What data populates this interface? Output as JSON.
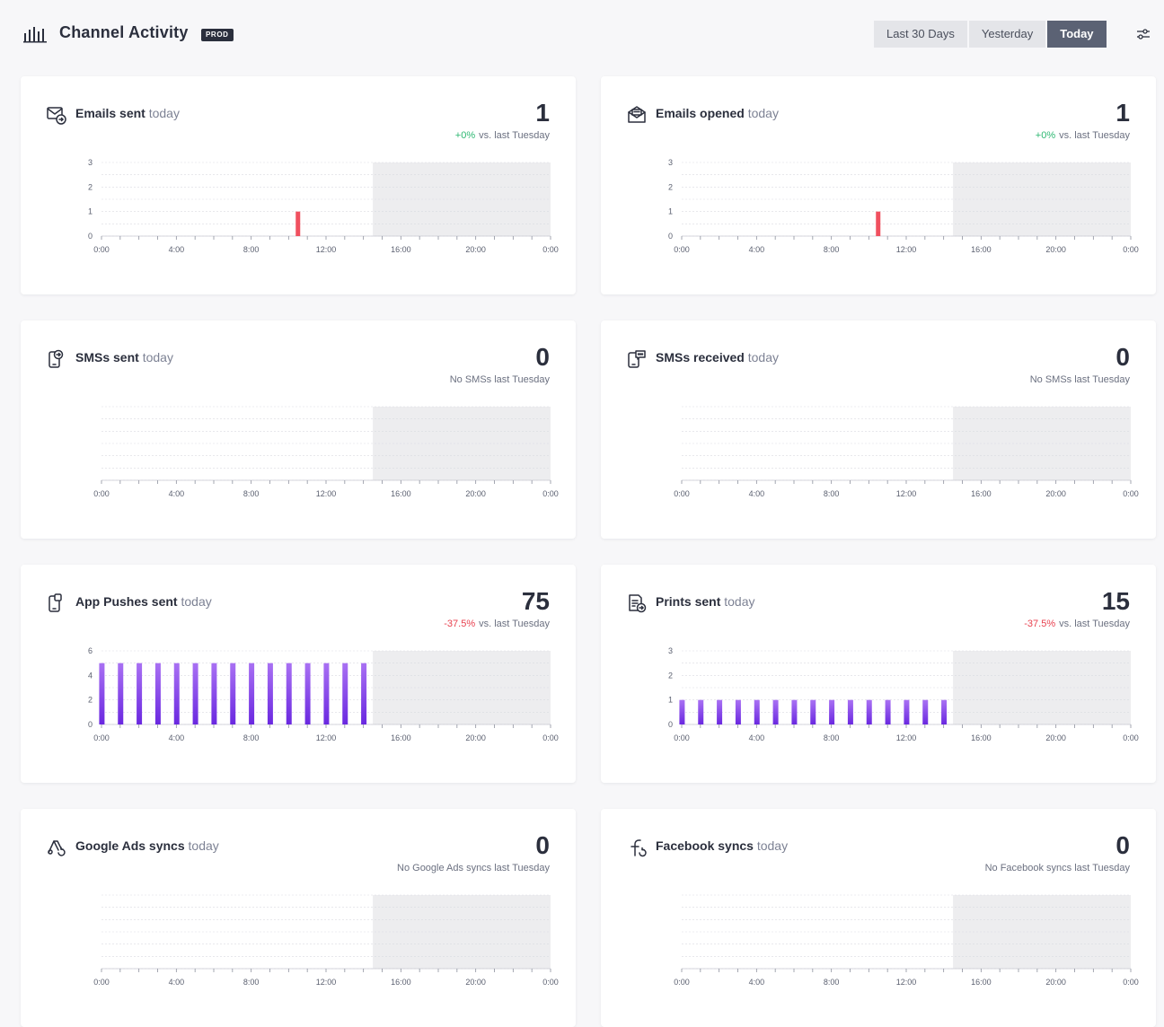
{
  "header": {
    "title": "Channel Activity",
    "env_badge": "PROD",
    "ranges": [
      "Last 30 Days",
      "Yesterday",
      "Today"
    ],
    "active_range": "Today"
  },
  "x_ticks": [
    "0:00",
    "4:00",
    "8:00",
    "12:00",
    "16:00",
    "20:00",
    "0:00"
  ],
  "cards": [
    {
      "title": "Emails sent",
      "suffix": "today",
      "value": "1",
      "delta": "+0%",
      "delta_sign": "positive",
      "compare": "vs. last Tuesday",
      "icon": "email-send-icon"
    },
    {
      "title": "Emails opened",
      "suffix": "today",
      "value": "1",
      "delta": "+0%",
      "delta_sign": "positive",
      "compare": "vs. last Tuesday",
      "icon": "email-open-icon"
    },
    {
      "title": "SMSs sent",
      "suffix": "today",
      "value": "0",
      "delta": "",
      "delta_sign": "none",
      "compare": "No SMSs last Tuesday",
      "icon": "sms-send-icon"
    },
    {
      "title": "SMSs received",
      "suffix": "today",
      "value": "0",
      "delta": "",
      "delta_sign": "none",
      "compare": "No SMSs last Tuesday",
      "icon": "sms-receive-icon"
    },
    {
      "title": "App Pushes sent",
      "suffix": "today",
      "value": "75",
      "delta": "-37.5%",
      "delta_sign": "negative",
      "compare": "vs. last Tuesday",
      "icon": "app-push-icon"
    },
    {
      "title": "Prints sent",
      "suffix": "today",
      "value": "15",
      "delta": "-37.5%",
      "delta_sign": "negative",
      "compare": "vs. last Tuesday",
      "icon": "print-send-icon"
    },
    {
      "title": "Google Ads syncs",
      "suffix": "today",
      "value": "0",
      "delta": "",
      "delta_sign": "none",
      "compare": "No Google Ads syncs last Tuesday",
      "icon": "google-ads-icon"
    },
    {
      "title": "Facebook syncs",
      "suffix": "today",
      "value": "0",
      "delta": "",
      "delta_sign": "none",
      "compare": "No Facebook syncs last Tuesday",
      "icon": "facebook-sync-icon"
    }
  ],
  "colors": {
    "email_bar": "#f0505f",
    "push_bar_top": "#a971f3",
    "push_bar_bottom": "#6a28e0",
    "future_shade": "#ededef",
    "active_range_bg": "#5b6274"
  },
  "chart_data": [
    {
      "type": "bar",
      "series_label": "Emails sent",
      "x_hours": [
        10
      ],
      "values": [
        1
      ],
      "yticks": [
        "0",
        "1",
        "2",
        "3"
      ],
      "ymax": 3,
      "xlabels": [
        "0:00",
        "4:00",
        "8:00",
        "12:00",
        "16:00",
        "20:00",
        "0:00"
      ],
      "current_hour": 14.5,
      "bar_color": "red"
    },
    {
      "type": "bar",
      "series_label": "Emails opened",
      "x_hours": [
        10
      ],
      "values": [
        1
      ],
      "yticks": [
        "0",
        "1",
        "2",
        "3"
      ],
      "ymax": 3,
      "xlabels": [
        "0:00",
        "4:00",
        "8:00",
        "12:00",
        "16:00",
        "20:00",
        "0:00"
      ],
      "current_hour": 14.5,
      "bar_color": "red"
    },
    {
      "type": "bar",
      "series_label": "SMSs sent",
      "x_hours": [],
      "values": [],
      "yticks": [],
      "ymax": 3,
      "xlabels": [
        "0:00",
        "4:00",
        "8:00",
        "12:00",
        "16:00",
        "20:00",
        "0:00"
      ],
      "current_hour": 14.5,
      "bar_color": "red"
    },
    {
      "type": "bar",
      "series_label": "SMSs received",
      "x_hours": [],
      "values": [],
      "yticks": [],
      "ymax": 3,
      "xlabels": [
        "0:00",
        "4:00",
        "8:00",
        "12:00",
        "16:00",
        "20:00",
        "0:00"
      ],
      "current_hour": 14.5,
      "bar_color": "red"
    },
    {
      "type": "bar",
      "series_label": "App Pushes sent",
      "x_hours": [
        0,
        1,
        2,
        3,
        4,
        5,
        6,
        7,
        8,
        9,
        10,
        11,
        12,
        13,
        14
      ],
      "values": [
        5,
        5,
        5,
        5,
        5,
        5,
        5,
        5,
        5,
        5,
        5,
        5,
        5,
        5,
        5
      ],
      "yticks": [
        "0",
        "2",
        "4",
        "6"
      ],
      "ymax": 6,
      "xlabels": [
        "0:00",
        "4:00",
        "8:00",
        "12:00",
        "16:00",
        "20:00",
        "0:00"
      ],
      "current_hour": 14.5,
      "bar_color": "purple"
    },
    {
      "type": "bar",
      "series_label": "Prints sent",
      "x_hours": [
        0,
        1,
        2,
        3,
        4,
        5,
        6,
        7,
        8,
        9,
        10,
        11,
        12,
        13,
        14
      ],
      "values": [
        1,
        1,
        1,
        1,
        1,
        1,
        1,
        1,
        1,
        1,
        1,
        1,
        1,
        1,
        1
      ],
      "yticks": [
        "0",
        "1",
        "2",
        "3"
      ],
      "ymax": 3,
      "xlabels": [
        "0:00",
        "4:00",
        "8:00",
        "12:00",
        "16:00",
        "20:00",
        "0:00"
      ],
      "current_hour": 14.5,
      "bar_color": "purple"
    },
    {
      "type": "bar",
      "series_label": "Google Ads syncs",
      "x_hours": [],
      "values": [],
      "yticks": [],
      "ymax": 3,
      "xlabels": [
        "0:00",
        "4:00",
        "8:00",
        "12:00",
        "16:00",
        "20:00",
        "0:00"
      ],
      "current_hour": 14.5,
      "bar_color": "red"
    },
    {
      "type": "bar",
      "series_label": "Facebook syncs",
      "x_hours": [],
      "values": [],
      "yticks": [],
      "ymax": 3,
      "xlabels": [
        "0:00",
        "4:00",
        "8:00",
        "12:00",
        "16:00",
        "20:00",
        "0:00"
      ],
      "current_hour": 14.5,
      "bar_color": "red"
    }
  ]
}
